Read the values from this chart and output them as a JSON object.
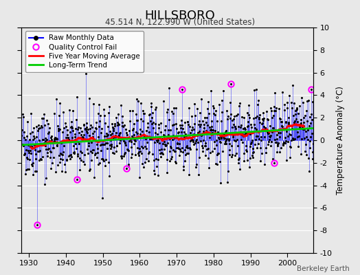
{
  "title": "HILLSBORO",
  "subtitle": "45.514 N, 122.990 W (United States)",
  "ylabel": "Temperature Anomaly (°C)",
  "credit": "Berkeley Earth",
  "xlim": [
    1928,
    2007
  ],
  "ylim": [
    -10,
    10
  ],
  "yticks": [
    -10,
    -8,
    -6,
    -4,
    -2,
    0,
    2,
    4,
    6,
    8,
    10
  ],
  "xticks": [
    1930,
    1940,
    1950,
    1960,
    1970,
    1980,
    1990,
    2000
  ],
  "seed": 42,
  "raw_color": "#0000ff",
  "marker_color": "#000000",
  "qc_color": "#ff00ff",
  "moving_avg_color": "#ff0000",
  "trend_color": "#00cc00",
  "background_color": "#e8e8e8",
  "grid_color": "#ffffff",
  "qc_indices": [
    50,
    180,
    340,
    520,
    680,
    820,
    940
  ],
  "qc_adjustments": [
    -7.5,
    -3.5,
    -2.5,
    4.5,
    5.0,
    -2.0,
    4.5
  ]
}
